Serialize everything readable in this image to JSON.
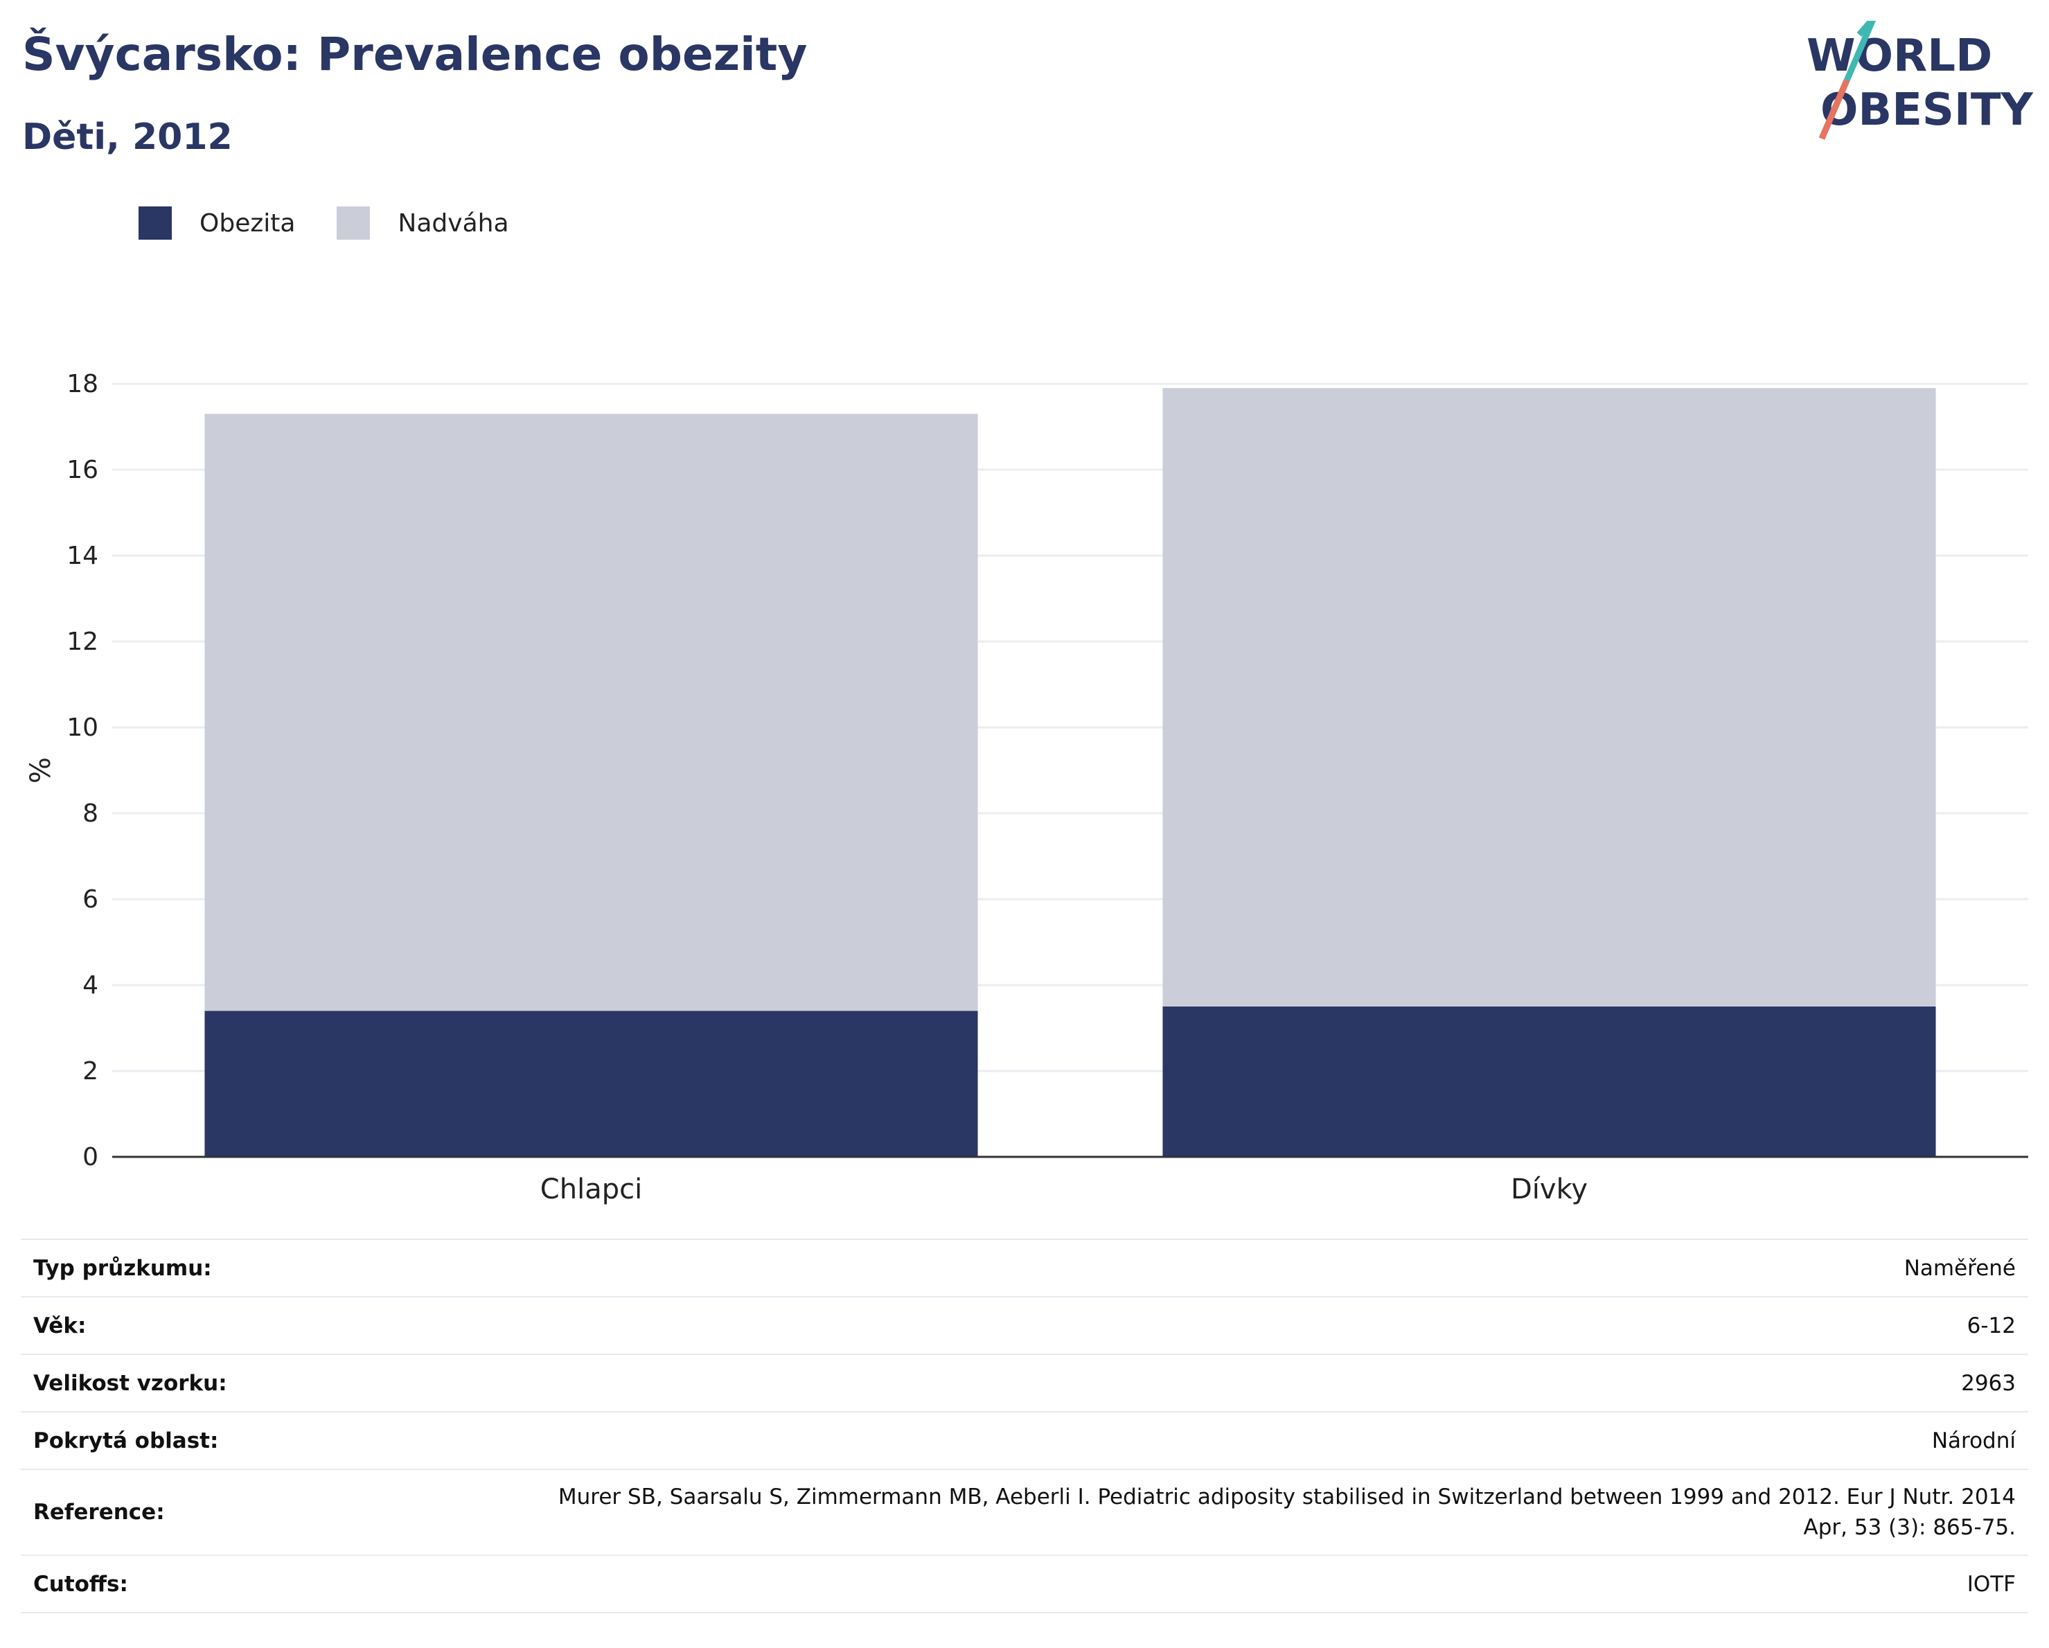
{
  "header": {
    "title": "Švýcarsko: Prevalence obezity",
    "subtitle": "Děti, 2012"
  },
  "logo": {
    "line1": "WORLD",
    "line2": "OBESITY"
  },
  "legend": [
    {
      "label": "Obezita",
      "color": "#2a3663"
    },
    {
      "label": "Nadváha",
      "color": "#cbcdd9"
    }
  ],
  "chart_data": {
    "type": "bar",
    "stacked": true,
    "categories": [
      "Chlapci",
      "Dívky"
    ],
    "series": [
      {
        "name": "Obezita",
        "values": [
          3.4,
          3.5
        ],
        "color": "#2a3663"
      },
      {
        "name": "Nadváha",
        "values": [
          13.9,
          14.4
        ],
        "color": "#cbcdd9"
      }
    ],
    "ylabel": "%",
    "ylim": [
      0,
      18
    ],
    "yticks": [
      "0",
      "2",
      "4",
      "6",
      "8",
      "10",
      "12",
      "14",
      "16",
      "18"
    ],
    "grid": true,
    "legend_position": "top-left"
  },
  "meta": {
    "survey_type": {
      "label": "Typ průzkumu:",
      "value": "Naměřené"
    },
    "age": {
      "label": "Věk:",
      "value": "6-12"
    },
    "sample_size": {
      "label": "Velikost vzorku:",
      "value": "2963"
    },
    "coverage": {
      "label": "Pokrytá oblast:",
      "value": "Národní"
    },
    "reference": {
      "label": "Reference:",
      "value_line1": "Murer SB, Saarsalu S, Zimmermann MB, Aeberli I. Pediatric adiposity stabilised in Switzerland between 1999 and 2012. Eur J Nutr. 2014",
      "value_line2": "Apr, 53 (3): 865-75."
    },
    "cutoffs": {
      "label": "Cutoffs:",
      "value": "IOTF"
    }
  }
}
